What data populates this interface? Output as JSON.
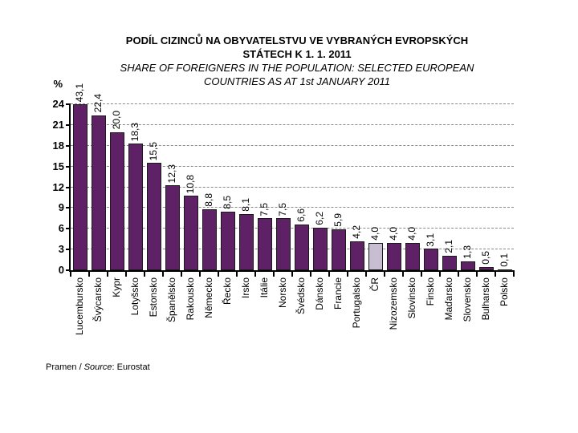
{
  "title": {
    "cs_line1": "PODÍL CIZINCŮ NA OBYVATELSTVU VE VYBRANÝCH EVROPSKÝCH",
    "cs_line2": "STÁTECH K 1. 1. 2011",
    "en_line1": "SHARE OF FOREIGNERS IN THE POPULATION: SELECTED EUROPEAN",
    "en_line2": "COUNTRIES AS AT 1st JANUARY 2011"
  },
  "y_axis": {
    "unit_label": "%",
    "ticks": [
      0,
      3,
      6,
      9,
      12,
      15,
      18,
      21,
      24
    ]
  },
  "source": {
    "prefix": "Pramen / ",
    "italic": "Source",
    "suffix": ": Eurostat"
  },
  "chart_data": {
    "type": "bar",
    "title": "PODÍL CIZINCŮ NA OBYVATELSTVU VE VYBRANÝCH EVROPSKÝCH STÁTECH K 1. 1. 2011",
    "subtitle": "SHARE OF FOREIGNERS IN THE POPULATION: SELECTED EUROPEAN COUNTRIES AS AT 1st JANUARY 2011",
    "categories": [
      "Lucembursko",
      "Švýcarsko",
      "Kypr",
      "Lotyšsko",
      "Estonsko",
      "Španělsko",
      "Rakousko",
      "Německo",
      "Řecko",
      "Irsko",
      "Itálie",
      "Norsko",
      "Švédsko",
      "Dánsko",
      "Francie",
      "Portugalsko",
      "ČR",
      "Nizozemsko",
      "Slovinsko",
      "Finsko",
      "Maďarsko",
      "Slovensko",
      "Bulharsko",
      "Polsko"
    ],
    "values": [
      43.1,
      22.4,
      20.0,
      18.3,
      15.5,
      12.3,
      10.8,
      8.8,
      8.5,
      8.1,
      7.5,
      7.5,
      6.6,
      6.2,
      5.9,
      4.2,
      4.0,
      4.0,
      4.0,
      3.1,
      2.1,
      1.3,
      0.5,
      0.1
    ],
    "value_labels": [
      "43,1",
      "22,4",
      "20,0",
      "18,3",
      "15,5",
      "12,3",
      "10,8",
      "8,8",
      "8,5",
      "8,1",
      "7,5",
      "7,5",
      "6,6",
      "6,2",
      "5,9",
      "4,2",
      "4,0",
      "4,0",
      "4,0",
      "3,1",
      "2,1",
      "1,3",
      "0,5",
      "0,1"
    ],
    "highlighted_category": "ČR",
    "ylabel": "%",
    "ylim": [
      0,
      24
    ],
    "grid": "dashed horizontal at every 3 units",
    "legend": "none",
    "bar_color": "#5E2166",
    "highlight_color": "#C7BFD1",
    "values_clipped_at_axis_max": [
      "Lucembursko"
    ]
  }
}
